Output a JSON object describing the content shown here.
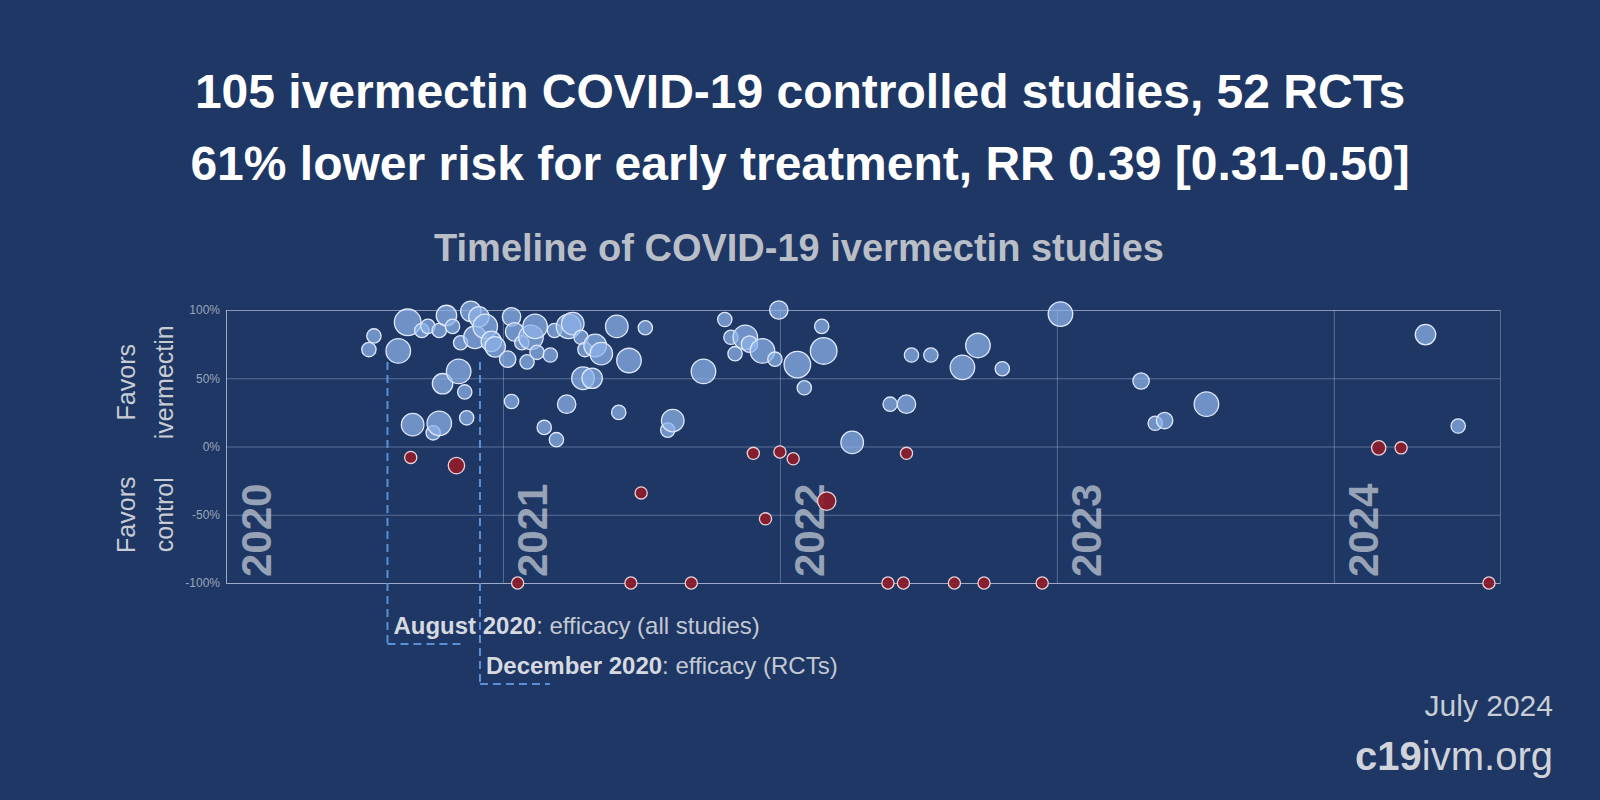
{
  "chart_data": {
    "type": "scatter",
    "title": [
      "105 ivermectin COVID-19 controlled studies, 52 RCTs",
      "61% lower risk for early treatment, RR 0.39 [0.31-0.50]"
    ],
    "subtitle": "Timeline of COVID-19 ivermectin studies",
    "ylabel": [
      [
        "Favors",
        "ivermectin"
      ],
      [
        "Favors",
        "control"
      ]
    ],
    "xlim": [
      2020,
      2024.6
    ],
    "xticks": [
      2020,
      2021,
      2022,
      2023,
      2024
    ],
    "ylim": [
      -100,
      100
    ],
    "yticks": [
      {
        "value": -100,
        "label": "-100%"
      },
      {
        "value": -50,
        "label": "-50%"
      },
      {
        "value": 0,
        "label": "0%"
      },
      {
        "value": 50,
        "label": "50%"
      },
      {
        "value": 100,
        "label": "100%"
      }
    ],
    "grid": true,
    "marker": "circle",
    "series": [
      {
        "color": "#8fb4ea",
        "x": [
          2020.516,
          2020.534,
          2020.622,
          2020.656,
          2020.674,
          2020.707,
          2020.729,
          2020.748,
          2020.77,
          2020.77,
          2020.782,
          2020.796,
          2020.818,
          2020.84,
          2020.847,
          2020.862,
          2020.869,
          2020.884,
          2020.899,
          2020.913,
          2020.936,
          2020.958,
          2020.972,
          2021.017,
          2021.031,
          2021.031,
          2021.042,
          2021.068,
          2021.087,
          2021.101,
          2021.116,
          2021.123,
          2021.149,
          2021.171,
          2021.193,
          2021.186,
          2021.23,
          2021.237,
          2021.252,
          2021.282,
          2021.289,
          2021.296,
          2021.322,
          2021.333,
          2021.355,
          2021.411,
          2021.418,
          2021.455,
          2021.514,
          2021.595,
          2021.613,
          2021.724,
          2021.801,
          2021.823,
          2021.838,
          2021.875,
          2021.89,
          2021.937,
          2021.996,
          2021.982,
          2022.063,
          2022.088,
          2022.151,
          2022.158,
          2022.261,
          2022.398,
          2022.457,
          2022.475,
          2022.545,
          2022.659,
          2022.715,
          2022.803,
          2023.013,
          2023.304,
          2023.355,
          2023.389,
          2023.54,
          2024.331,
          2024.449
        ],
        "values": [
          71,
          81,
          70,
          91,
          16,
          85,
          88,
          10,
          17,
          85,
          46,
          96,
          88,
          55,
          76,
          40,
          21,
          99,
          80,
          95,
          88,
          77,
          73,
          64,
          95,
          33,
          84,
          76,
          62,
          80,
          88,
          69,
          14,
          67,
          5,
          85,
          31,
          88,
          90,
          80,
          50,
          71,
          50,
          74,
          68,
          88,
          25,
          63,
          87,
          12,
          19,
          55,
          93,
          80,
          68,
          80,
          75,
          70,
          100,
          64,
          60,
          43,
          88,
          70,
          3,
          31,
          31,
          67,
          67,
          58,
          74,
          57,
          97,
          48,
          17,
          19,
          31,
          82,
          15
        ],
        "sizes": [
          29,
          29,
          85,
          100,
          72,
          29,
          29,
          29,
          85,
          29,
          59,
          59,
          29,
          85,
          29,
          29,
          29,
          59,
          72,
          59,
          85,
          59,
          59,
          38,
          48,
          29,
          48,
          29,
          29,
          85,
          85,
          29,
          29,
          29,
          29,
          29,
          48,
          85,
          72,
          29,
          72,
          29,
          59,
          72,
          72,
          72,
          29,
          85,
          29,
          29,
          72,
          85,
          29,
          29,
          29,
          85,
          38,
          85,
          48,
          29,
          100,
          29,
          29,
          100,
          72,
          29,
          48,
          29,
          29,
          85,
          85,
          29,
          85,
          38,
          29,
          38,
          85,
          59,
          29
        ]
      },
      {
        "color": "#8b1d2c",
        "x": [
          2020.667,
          2020.832,
          2021.053,
          2021.462,
          2021.499,
          2021.68,
          2021.904,
          2021.948,
          2022.0,
          2022.048,
          2022.169,
          2022.39,
          2022.446,
          2022.457,
          2022.63,
          2022.737,
          2022.947,
          2024.162,
          2024.243,
          2024.56
        ],
        "values": [
          -8,
          -14,
          -100,
          -100,
          -34,
          -100,
          -5,
          -53,
          -4,
          -9,
          -40,
          -100,
          -100,
          -5,
          -100,
          -100,
          -100,
          -1,
          -1,
          -100
        ],
        "sizes": [
          21,
          38,
          21,
          21,
          21,
          21,
          21,
          21,
          21,
          21,
          48,
          21,
          21,
          21,
          21,
          21,
          21,
          29,
          21,
          21
        ]
      }
    ],
    "annotations": [
      {
        "x": 2020.583,
        "bold": "August 2020",
        "text": ": efficacy (all studies)"
      },
      {
        "x": 2020.917,
        "bold": "December 2020",
        "text": ": efficacy (RCTs)"
      }
    ],
    "date": "July 2024",
    "source": [
      "c19",
      "ivm.org"
    ]
  }
}
